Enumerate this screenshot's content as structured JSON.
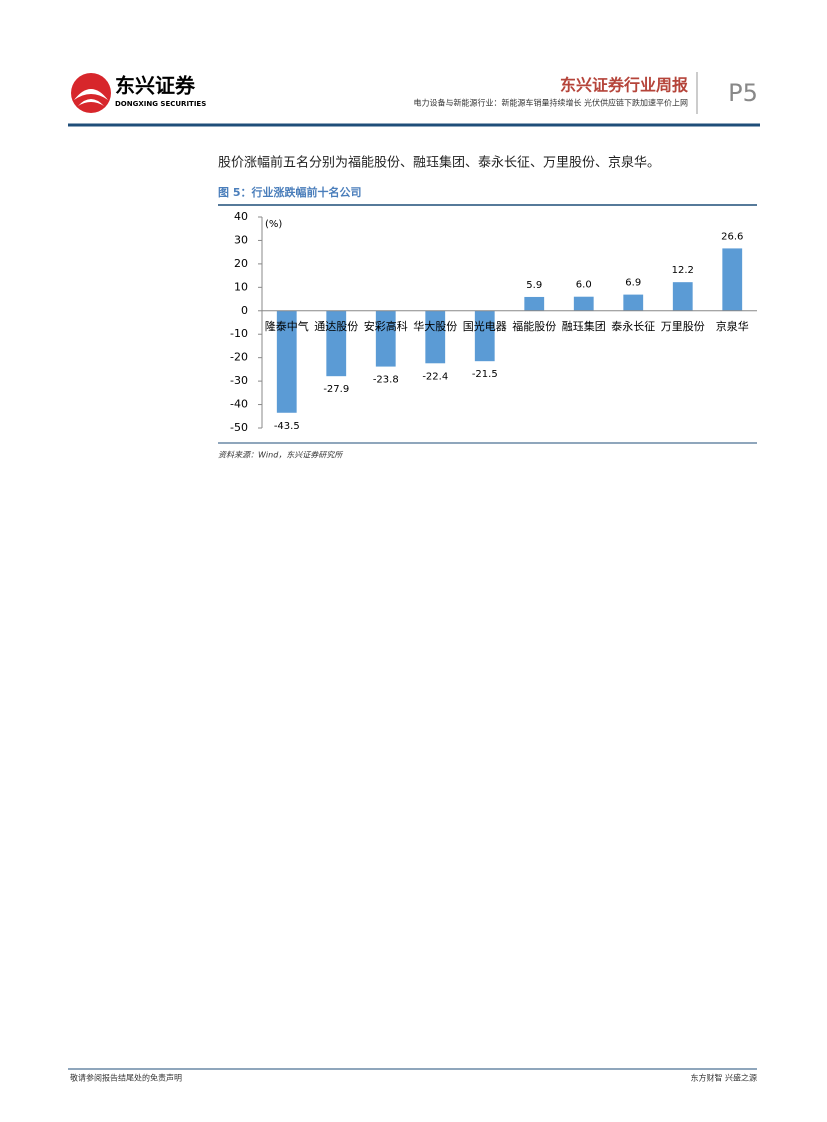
{
  "header": {
    "logo_name": "东兴证券",
    "logo_en": "DONGXING SECURITIES",
    "report_type": "东兴证券行业周报",
    "report_title": "电力设备与新能源行业：新能源车销量持续增长 光伏供应链下跌加速平价上网",
    "page": "P5"
  },
  "body": {
    "paragraph": "股价涨幅前五名分别为福能股份、融珏集团、泰永长征、万里股份、京泉华。"
  },
  "figure": {
    "title": "图 5：行业涨跌幅前十名公司",
    "source": "资料来源：Wind，东兴证券研究所"
  },
  "chart_data": {
    "type": "bar",
    "unit_label": "(%)",
    "categories": [
      "隆泰中气",
      "通达股份",
      "安彩高科",
      "华大股份",
      "国光电器",
      "福能股份",
      "融珏集团",
      "泰永长征",
      "万里股份",
      "京泉华"
    ],
    "values": [
      -43.5,
      -27.9,
      -23.8,
      -22.4,
      -21.5,
      5.9,
      6.0,
      6.9,
      12.2,
      26.6
    ],
    "value_labels": [
      "-43.5",
      "-27.9",
      "-23.8",
      "-22.4",
      "-21.5",
      "5.9",
      "6.0",
      "6.9",
      "12.2",
      "26.6"
    ],
    "color": "#5b9bd5",
    "ylim": [
      -50,
      40
    ],
    "yticks": [
      -50,
      -40,
      -30,
      -20,
      -10,
      0,
      10,
      20,
      30,
      40
    ],
    "grid": false
  },
  "footer": {
    "left": "敬请参阅报告结尾处的免责声明",
    "right": "东方财智 兴盛之源"
  }
}
